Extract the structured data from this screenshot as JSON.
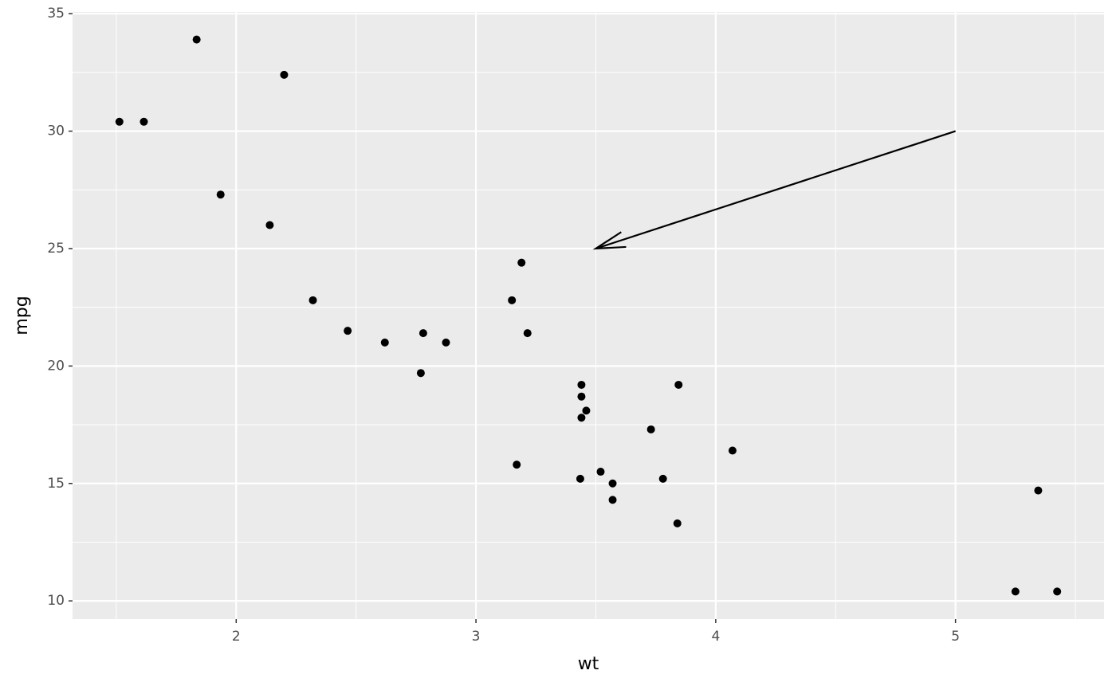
{
  "chart_data": {
    "type": "scatter",
    "x_label": "wt",
    "y_label": "mpg",
    "x": [
      2.62,
      2.875,
      2.32,
      3.215,
      3.44,
      3.46,
      3.57,
      3.19,
      3.15,
      3.44,
      3.44,
      4.07,
      3.73,
      3.78,
      5.25,
      5.424,
      5.345,
      2.2,
      1.615,
      1.835,
      2.465,
      3.52,
      3.435,
      3.84,
      3.845,
      1.935,
      2.14,
      1.513,
      3.17,
      2.77,
      3.57,
      2.78
    ],
    "values": [
      21,
      21,
      22.8,
      21.4,
      18.7,
      18.1,
      14.3,
      24.4,
      22.8,
      19.2,
      17.8,
      16.4,
      17.3,
      15.2,
      10.4,
      10.4,
      14.7,
      32.4,
      30.4,
      33.9,
      21.5,
      15.5,
      15.2,
      13.3,
      19.2,
      27.3,
      26,
      30.4,
      15.8,
      19.7,
      15,
      21.4
    ],
    "color": "#000000",
    "xlim": [
      1.3175,
      5.6195
    ],
    "ylim": [
      9.225,
      35.075
    ],
    "xticks": [
      2,
      3,
      4,
      5
    ],
    "yticks": [
      10,
      15,
      20,
      25,
      30,
      35
    ],
    "x_minor_ticks": [
      1.5,
      2.5,
      3.5,
      4.5,
      5.5
    ],
    "y_minor_ticks": [
      12.5,
      17.5,
      22.5,
      27.5,
      32.5
    ],
    "grid": true,
    "annotations": [
      {
        "type": "arrow",
        "x": [
          5,
          3.5
        ],
        "y": [
          30,
          25
        ]
      }
    ]
  }
}
